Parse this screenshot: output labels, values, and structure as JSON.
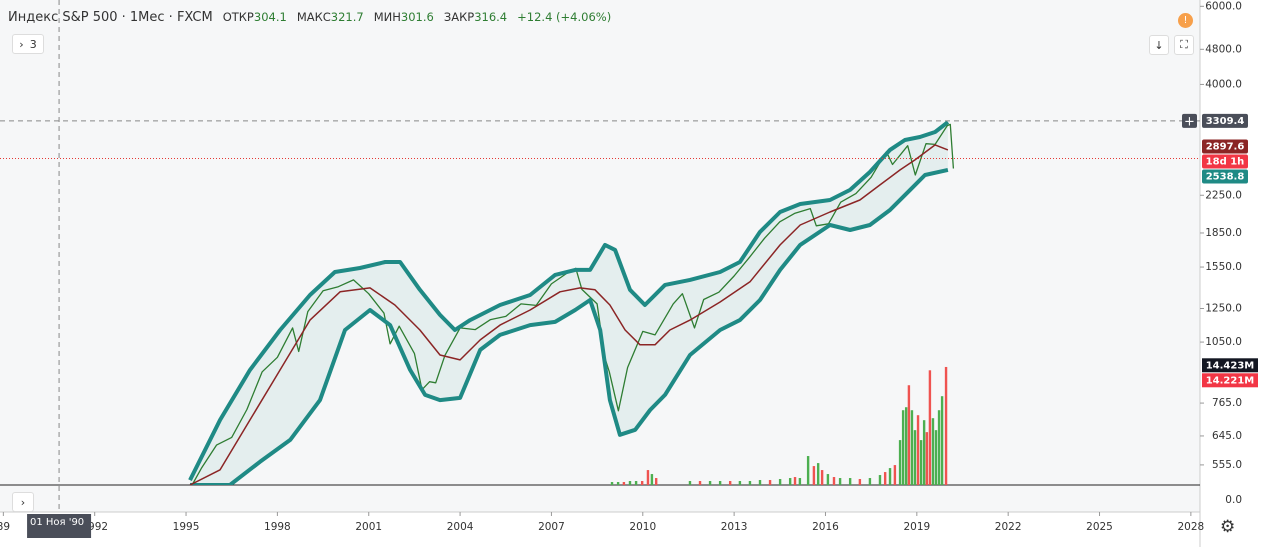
{
  "header": {
    "title": "Индекс S&P 500 · 1Мес · FXCM",
    "indicator_count": "3",
    "ohlc": [
      {
        "label": "ОТКР",
        "value": "304.1"
      },
      {
        "label": "МАКС",
        "value": "321.7"
      },
      {
        "label": "МИН",
        "value": "301.6"
      },
      {
        "label": "ЗАКР",
        "value": "316.4"
      }
    ],
    "change": "+12.4 (+4.06%)"
  },
  "chart_data": {
    "type": "price-chart",
    "log_scale": true,
    "grid": false,
    "xlim": [
      1988.89,
      2028.3
    ],
    "xticks": [
      {
        "value": 1989,
        "label": "89"
      },
      1992,
      1995,
      1998,
      2001,
      2004,
      2007,
      2010,
      2013,
      2016,
      2019,
      2022,
      2025,
      2028
    ],
    "ylim": [
      500,
      6200
    ],
    "yticks": [
      {
        "value": 6000,
        "label": "6000.0"
      },
      {
        "value": 4800,
        "label": "4800.0"
      },
      {
        "value": 4000,
        "label": "4000.0"
      },
      {
        "value": 2250,
        "label": "2250.0"
      },
      {
        "value": 1850,
        "label": "1850.0"
      },
      {
        "value": 1550,
        "label": "1550.0"
      },
      {
        "value": 1250,
        "label": "1250.0"
      },
      {
        "value": 1050,
        "label": "1050.0"
      },
      {
        "value": 765,
        "label": "765.0"
      },
      {
        "value": 645,
        "label": "645.0"
      },
      {
        "value": 555,
        "label": "555.0"
      }
    ],
    "series": [
      {
        "color": "#2e7d32",
        "width": 1.3,
        "x": [
          1995.2,
          1995.5,
          1996.0,
          1996.5,
          1997.0,
          1997.5,
          1998.0,
          1998.5,
          1998.7,
          1999.0,
          1999.5,
          2000.0,
          2000.5,
          2001.0,
          2001.5,
          2001.7,
          2002.0,
          2002.5,
          2002.75,
          2003.0,
          2003.2,
          2003.5,
          2004.0,
          2004.5,
          2005.0,
          2005.5,
          2006.0,
          2006.5,
          2007.0,
          2007.5,
          2007.8,
          2008.0,
          2008.5,
          2008.75,
          2008.9,
          2009.2,
          2009.5,
          2010.0,
          2010.4,
          2011.0,
          2011.3,
          2011.7,
          2012.0,
          2012.5,
          2013.0,
          2013.5,
          2014.0,
          2014.5,
          2015.0,
          2015.5,
          2015.7,
          2016.1,
          2016.5,
          2017.0,
          2017.5,
          2018.0,
          2018.2,
          2018.7,
          2018.95,
          2019.3,
          2019.6,
          2020.0,
          2020.1,
          2020.2
        ],
        "values": [
          500,
          545,
          615,
          640,
          740,
          900,
          970,
          1130,
          1000,
          1230,
          1370,
          1400,
          1450,
          1350,
          1220,
          1040,
          1140,
          990,
          820,
          855,
          850,
          980,
          1130,
          1120,
          1180,
          1200,
          1280,
          1270,
          1420,
          1500,
          1540,
          1380,
          1280,
          970,
          900,
          735,
          920,
          1110,
          1090,
          1280,
          1350,
          1130,
          1310,
          1360,
          1480,
          1630,
          1800,
          1960,
          2050,
          2100,
          1920,
          1940,
          2170,
          2270,
          2470,
          2820,
          2640,
          2910,
          2500,
          2940,
          2930,
          3230,
          3250,
          2585
        ]
      },
      {
        "color": "#1f8a85",
        "width": 4,
        "x": [
          1995.13,
          1996.12,
          1997.1,
          1998.09,
          1999.07,
          1999.89,
          2000.71,
          2001.54,
          2002.03,
          2002.68,
          2003.34,
          2003.83,
          2004.33,
          2005.31,
          2006.3,
          2007.12,
          2007.78,
          2008.27,
          2008.76,
          2009.09,
          2009.58,
          2010.07,
          2010.73,
          2011.55,
          2012.54,
          2013.19,
          2013.85,
          2014.51,
          2015.17,
          2016.15,
          2016.81,
          2017.46,
          2018.12,
          2018.61,
          2019.1,
          2019.6,
          2020.02
        ],
        "values": [
          513,
          701,
          909,
          1118,
          1341,
          1511,
          1542,
          1591,
          1591,
          1377,
          1209,
          1118,
          1177,
          1273,
          1341,
          1488,
          1527,
          1527,
          1739,
          1694,
          1377,
          1273,
          1413,
          1450,
          1511,
          1591,
          1860,
          2063,
          2150,
          2195,
          2313,
          2539,
          2847,
          2997,
          3044,
          3124,
          3290
        ]
      },
      {
        "color": "#1f8a85",
        "width": 4,
        "x": [
          1995.13,
          1996.44,
          1997.43,
          1998.42,
          1999.4,
          2000.22,
          2001.04,
          2001.7,
          2002.36,
          2002.85,
          2003.34,
          2004.0,
          2004.66,
          2005.31,
          2006.3,
          2007.12,
          2007.78,
          2008.27,
          2008.6,
          2008.92,
          2009.25,
          2009.75,
          2010.24,
          2010.73,
          2011.55,
          2012.54,
          2013.19,
          2013.85,
          2014.51,
          2015.17,
          2016.15,
          2016.81,
          2017.46,
          2018.12,
          2018.78,
          2019.27,
          2020.02
        ],
        "values": [
          500,
          500,
          564,
          632,
          777,
          1118,
          1240,
          1147,
          909,
          798,
          777,
          786,
          1008,
          1090,
          1147,
          1166,
          1240,
          1306,
          1118,
          777,
          649,
          666,
          738,
          798,
          982,
          1118,
          1177,
          1306,
          1527,
          1739,
          1928,
          1879,
          1928,
          2084,
          2313,
          2500,
          2566
        ]
      },
      {
        "color": "#8b2525",
        "width": 1.5,
        "x": [
          1995.13,
          1996.12,
          1997.1,
          1998.09,
          1999.07,
          2000.06,
          2001.04,
          2001.86,
          2002.68,
          2003.34,
          2004.0,
          2004.66,
          2005.31,
          2006.3,
          2007.28,
          2007.94,
          2008.43,
          2008.92,
          2009.42,
          2009.91,
          2010.4,
          2010.89,
          2011.55,
          2012.54,
          2013.52,
          2014.51,
          2015.17,
          2016.15,
          2017.13,
          2017.79,
          2018.45,
          2018.94,
          2019.6,
          2020.02
        ],
        "values": [
          500,
          541,
          701,
          909,
          1177,
          1363,
          1391,
          1273,
          1118,
          982,
          957,
          1062,
          1147,
          1240,
          1363,
          1391,
          1377,
          1273,
          1118,
          1035,
          1035,
          1118,
          1177,
          1293,
          1436,
          1739,
          1928,
          2063,
          2195,
          2374,
          2566,
          2703,
          2922,
          2847
        ]
      }
    ],
    "band_fill": "rgba(31,138,133,0.08)",
    "volume": {
      "vlim": [
        0,
        20
      ],
      "tick": {
        "value": 0,
        "label": "0.0"
      },
      "x": [
        2008.99,
        2009.19,
        2009.38,
        2009.58,
        2009.78,
        2009.98,
        2010.17,
        2010.3,
        2010.44,
        2011.55,
        2011.88,
        2012.21,
        2012.54,
        2012.87,
        2013.19,
        2013.52,
        2013.85,
        2014.18,
        2014.51,
        2014.84,
        2015.0,
        2015.16,
        2015.43,
        2015.62,
        2015.76,
        2015.89,
        2016.08,
        2016.28,
        2016.48,
        2016.81,
        2017.13,
        2017.46,
        2017.79,
        2017.96,
        2018.12,
        2018.28,
        2018.45,
        2018.55,
        2018.65,
        2018.74,
        2018.84,
        2018.94,
        2019.04,
        2019.14,
        2019.24,
        2019.33,
        2019.43,
        2019.53,
        2019.63,
        2019.73,
        2019.83,
        2019.96
      ],
      "values": [
        0.36,
        0.36,
        0.36,
        0.48,
        0.48,
        0.48,
        1.8,
        1.32,
        0.84,
        0.48,
        0.48,
        0.48,
        0.48,
        0.48,
        0.48,
        0.48,
        0.6,
        0.6,
        0.72,
        0.84,
        0.96,
        0.84,
        3.49,
        2.28,
        2.64,
        1.8,
        1.32,
        0.96,
        0.84,
        0.84,
        0.72,
        0.84,
        1.2,
        1.56,
        2.04,
        2.4,
        5.41,
        9.01,
        9.37,
        12.02,
        9.01,
        6.61,
        8.41,
        5.41,
        7.81,
        6.37,
        13.82,
        8.05,
        6.61,
        9.01,
        10.7,
        14.221
      ],
      "colors": [
        "#4caf50",
        "#4caf50",
        "#ef5350",
        "#4caf50",
        "#4caf50",
        "#ef5350",
        "#ef5350",
        "#4caf50",
        "#ef5350",
        "#4caf50",
        "#ef5350",
        "#4caf50",
        "#4caf50",
        "#ef5350",
        "#4caf50",
        "#4caf50",
        "#4caf50",
        "#ef5350",
        "#4caf50",
        "#4caf50",
        "#ef5350",
        "#4caf50",
        "#4caf50",
        "#ef5350",
        "#4caf50",
        "#ef5350",
        "#4caf50",
        "#ef5350",
        "#4caf50",
        "#4caf50",
        "#ef5350",
        "#4caf50",
        "#4caf50",
        "#ef5350",
        "#4caf50",
        "#ef5350",
        "#4caf50",
        "#4caf50",
        "#4caf50",
        "#ef5350",
        "#4caf50",
        "#4caf50",
        "#ef5350",
        "#4caf50",
        "#4caf50",
        "#ef5350",
        "#ef5350",
        "#4caf50",
        "#4caf50",
        "#4caf50",
        "#4caf50",
        "#ef5350"
      ],
      "badges": [
        {
          "value": 14.423,
          "label": "14.423M",
          "color": "#131722"
        },
        {
          "value": 14.221,
          "label": "14.221M",
          "color": "#f23645"
        }
      ]
    },
    "price_badges": [
      {
        "value": 3309.4,
        "color": "#4a4e59"
      },
      {
        "value": 2897.6,
        "color": "#8b2525"
      },
      {
        "text": "18d 1h",
        "color": "#f23645"
      },
      {
        "value": 2538.8,
        "color": "#1f8a85"
      }
    ],
    "crosshair": {
      "x": 1990.83,
      "label": "01 Ноя '90"
    }
  }
}
